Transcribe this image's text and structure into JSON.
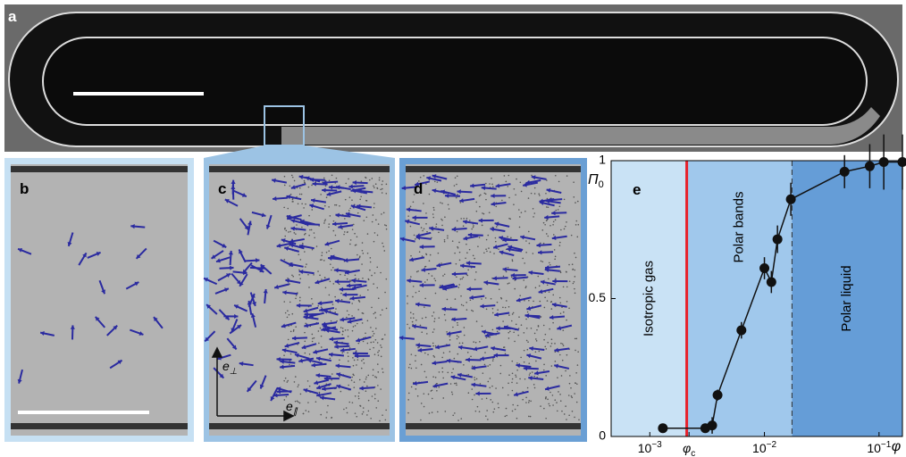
{
  "panels": {
    "a": "a",
    "b": "b",
    "c": "c",
    "d": "d"
  },
  "vectors": {
    "perp": "e",
    "perp_sub": "⊥",
    "par": "e",
    "par_sub": "∥"
  },
  "chart_data": {
    "type": "scatter",
    "panel": "e",
    "ylabel": "Π",
    "ylabel_sub": "0",
    "xlabel": "φ",
    "x": [
      0.0013,
      0.00305,
      0.0035,
      0.0039,
      0.0063,
      0.01,
      0.0115,
      0.013,
      0.017,
      0.05,
      0.083,
      0.11,
      0.16
    ],
    "series": [
      {
        "color": "#111111",
        "values": [
          0.03,
          0.03,
          0.04,
          0.15,
          0.385,
          0.61,
          0.56,
          0.715,
          0.86,
          0.96,
          0.98,
          0.995,
          0.995
        ],
        "errors": [
          0.01,
          0.01,
          0.03,
          0.02,
          0.03,
          0.04,
          0.04,
          0.05,
          0.06,
          0.06,
          0.08,
          0.1,
          0.1
        ]
      }
    ],
    "xlim": [
      0.00046,
      0.16
    ],
    "log_x": true,
    "ylim": [
      0,
      1
    ],
    "xticks": [
      {
        "value": 0.001,
        "label": "10",
        "exponent": "−3"
      },
      {
        "value": 0.0022,
        "label": "φ",
        "subscript": "c"
      },
      {
        "value": 0.01,
        "label": "10",
        "exponent": "−2"
      },
      {
        "value": 0.1,
        "label": "10",
        "exponent": "−1"
      }
    ],
    "yticks": [
      0,
      0.5,
      1
    ],
    "regions": [
      {
        "label": "Isotropic gas",
        "from": 0.00046,
        "to": 0.0021,
        "color": "#c9e2f5"
      },
      {
        "label": "Polar bands",
        "from": 0.0021,
        "to": 0.0174,
        "color": "#a0c8ec"
      },
      {
        "label": "Polar liquid",
        "from": 0.0174,
        "to": 0.16,
        "color": "#659dd7"
      }
    ],
    "transition": 0.0021,
    "transition_color": "#e8202a",
    "band_edge": 0.0174
  }
}
